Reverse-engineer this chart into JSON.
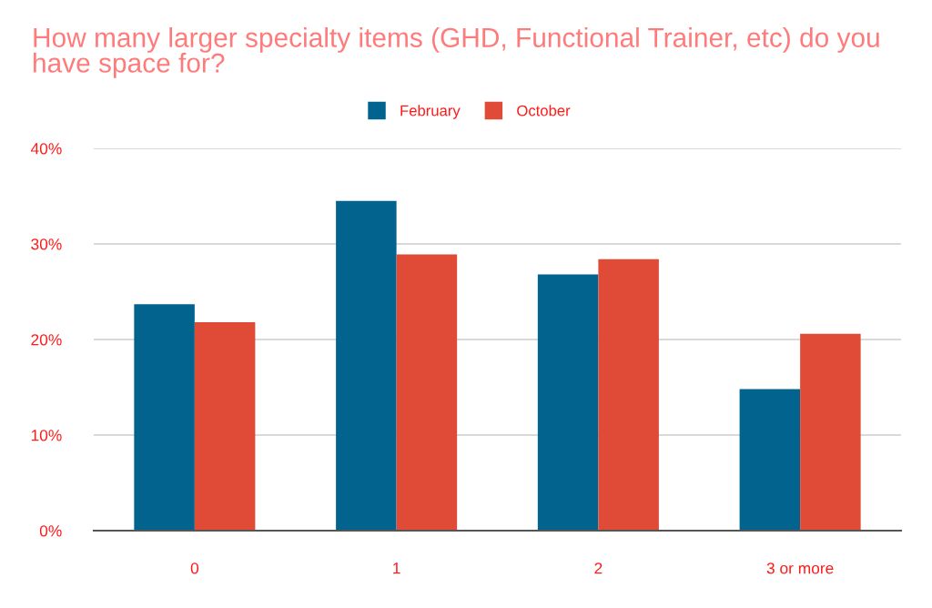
{
  "chart_data": {
    "type": "bar",
    "title": "How many larger specialty items (GHD, Functional Trainer, etc) do you have space for?",
    "categories": [
      "0",
      "1",
      "2",
      "3 or more"
    ],
    "series": [
      {
        "name": "February",
        "color": "#03638f",
        "values": [
          23.7,
          34.5,
          26.8,
          14.8
        ]
      },
      {
        "name": "October",
        "color": "#e04b38",
        "values": [
          21.8,
          28.9,
          28.4,
          20.6
        ]
      }
    ],
    "ylim": [
      0,
      40
    ],
    "yticks": [
      {
        "value": 0,
        "label": "0%"
      },
      {
        "value": 10,
        "label": "10%"
      },
      {
        "value": 20,
        "label": "20%"
      },
      {
        "value": 30,
        "label": "30%"
      },
      {
        "value": 40,
        "label": "40%"
      }
    ],
    "grid": "y",
    "legend": "top"
  }
}
